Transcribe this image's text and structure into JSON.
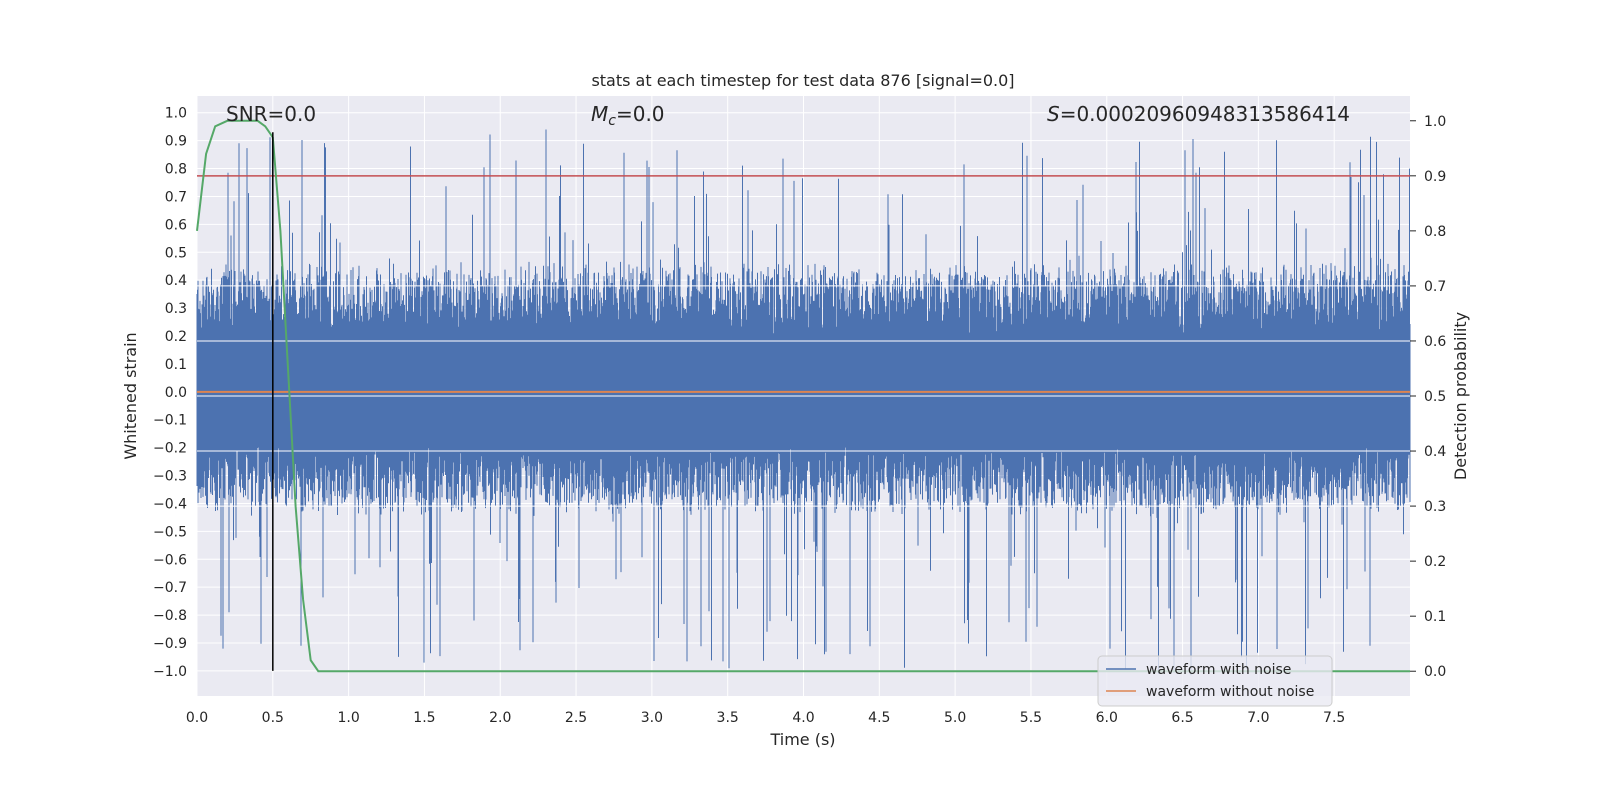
{
  "chart_data": {
    "type": "line",
    "title": "stats at each timestep for test data 876 [signal=0.0]",
    "xlabel": "Time (s)",
    "ylabel": "Whitened strain",
    "y2label": "Detection probability",
    "xlim": [
      0.0,
      8.0
    ],
    "ylim": [
      -1.09,
      1.06
    ],
    "y2lim": [
      -0.045,
      1.045
    ],
    "x_ticks": [
      0.0,
      0.5,
      1.0,
      1.5,
      2.0,
      2.5,
      3.0,
      3.5,
      4.0,
      4.5,
      5.0,
      5.5,
      6.0,
      6.5,
      7.0,
      7.5
    ],
    "x_tick_labels": [
      "0.0",
      "0.5",
      "1.0",
      "1.5",
      "2.0",
      "2.5",
      "3.0",
      "3.5",
      "4.0",
      "4.5",
      "5.0",
      "5.5",
      "6.0",
      "6.5",
      "7.0",
      "7.5"
    ],
    "y_ticks": [
      1.0,
      0.9,
      0.8,
      0.7,
      0.6,
      0.5,
      0.4,
      0.3,
      0.2,
      0.1,
      0.0,
      -0.1,
      -0.2,
      -0.3,
      -0.4,
      -0.5,
      -0.6,
      -0.7,
      -0.8,
      -0.9,
      -1.0
    ],
    "y_tick_labels": [
      "1.0",
      "0.9",
      "0.8",
      "0.7",
      "0.6",
      "0.5",
      "0.4",
      "0.3",
      "0.2",
      "0.1",
      "0.0",
      "−0.1",
      "−0.2",
      "−0.3",
      "−0.4",
      "−0.5",
      "−0.6",
      "−0.7",
      "−0.8",
      "−0.9",
      "−1.0"
    ],
    "y2_ticks": [
      1.0,
      0.9,
      0.8,
      0.7,
      0.6,
      0.5,
      0.4,
      0.3,
      0.2,
      0.1,
      0.0
    ],
    "y2_tick_labels": [
      "1.0",
      "0.9",
      "0.8",
      "0.7",
      "0.6",
      "0.5",
      "0.4",
      "0.3",
      "0.2",
      "0.1",
      "0.0"
    ],
    "annotations": {
      "snr": "SNR=0.0",
      "mc_symbol": "M",
      "mc_sub": "c",
      "mc_value": "=0.0",
      "s_symbol": "S",
      "s_value": "=0.00020960948313586414"
    },
    "series": [
      {
        "name": "waveform with noise",
        "color": "#4c72b0",
        "axis": "left",
        "description": "dense whitened noise around 0, approx band ±0.3 with spikes to about ±0.9",
        "envelope_upper": 0.93,
        "envelope_lower": -1.0,
        "dense_band": [
          -0.3,
          0.35
        ]
      },
      {
        "name": "waveform without noise",
        "color": "#dd8452",
        "axis": "left",
        "x": [
          0.0,
          8.0
        ],
        "values": [
          0.0,
          0.0
        ]
      },
      {
        "name": "detection probability",
        "color": "#55a868",
        "axis": "right",
        "x": [
          0.0,
          0.06,
          0.12,
          0.2,
          0.3,
          0.4,
          0.45,
          0.5,
          0.55,
          0.6,
          0.65,
          0.7,
          0.75,
          0.8,
          8.0
        ],
        "values": [
          0.8,
          0.94,
          0.99,
          1.0,
          1.0,
          1.0,
          0.99,
          0.97,
          0.8,
          0.55,
          0.3,
          0.13,
          0.02,
          0.0,
          0.0
        ]
      },
      {
        "name": "threshold",
        "color": "#c44e52",
        "axis": "right",
        "x": [
          0.0,
          8.0
        ],
        "values": [
          0.9,
          0.9
        ]
      },
      {
        "name": "event marker",
        "color": "#000000",
        "axis": "left",
        "x": [
          0.5,
          0.5
        ],
        "values": [
          -1.0,
          0.93
        ]
      }
    ],
    "legend": {
      "position": "bottom-right",
      "entries": [
        {
          "label": "waveform with noise",
          "color": "#4c72b0"
        },
        {
          "label": "waveform without noise",
          "color": "#dd8452"
        }
      ]
    },
    "colors": {
      "background": "#eaeaf2",
      "grid": "#ffffff",
      "text": "#262626"
    }
  }
}
